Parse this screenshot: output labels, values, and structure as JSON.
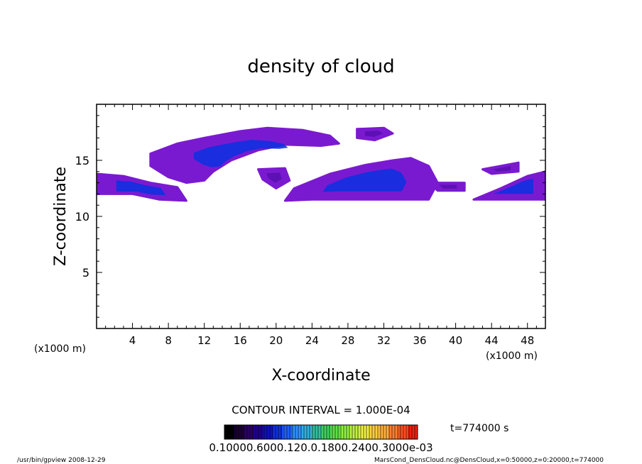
{
  "chart_data": {
    "type": "heatmap",
    "title": "density of cloud",
    "xlabel": "X-coordinate",
    "ylabel": "Z-coordinate",
    "x_unit_left": "(x1000 m)",
    "x_unit_right": "(x1000 m)",
    "xlim": [
      0,
      50
    ],
    "ylim": [
      0,
      20
    ],
    "x_ticks": [
      4,
      8,
      12,
      16,
      20,
      24,
      28,
      32,
      36,
      40,
      44,
      48
    ],
    "y_ticks": [
      5,
      10,
      15
    ],
    "x_tick_labels": [
      "4",
      "8",
      "12",
      "16",
      "20",
      "24",
      "28",
      "32",
      "36",
      "40",
      "44",
      "48"
    ],
    "y_tick_labels": [
      "5",
      "10",
      "15"
    ],
    "contour_interval": "CONTOUR INTERVAL = 1.000E-04",
    "time_label": "t=774000 s",
    "colorbar_labels_text": "0.10000.6000.120.0.1800.2400.3000e-03",
    "colorbar_colors": [
      "#000000",
      "#1a0033",
      "#2a0060",
      "#200090",
      "#1010c0",
      "#1030e0",
      "#2060ff",
      "#3090ff",
      "#30b0e0",
      "#30c0a0",
      "#40d060",
      "#60e040",
      "#90f040",
      "#c0f040",
      "#f0f040",
      "#ffd040",
      "#ffb040",
      "#ff8030",
      "#ff5020",
      "#f02010"
    ],
    "cloud_regions": [
      {
        "shape": "band",
        "points": [
          [
            0,
            13.8
          ],
          [
            3,
            13.6
          ],
          [
            6,
            13.0
          ],
          [
            9,
            12.6
          ],
          [
            10,
            11.4
          ],
          [
            7,
            11.5
          ],
          [
            4,
            12.0
          ],
          [
            0,
            12.0
          ]
        ],
        "core": "#1030e0",
        "edge": "#7a1ad0"
      },
      {
        "shape": "blob",
        "points": [
          [
            6,
            15.6
          ],
          [
            9,
            16.5
          ],
          [
            12,
            17.0
          ],
          [
            16,
            17.6
          ],
          [
            19,
            17.9
          ],
          [
            23,
            17.7
          ],
          [
            26,
            17.2
          ],
          [
            27,
            16.5
          ],
          [
            25,
            16.3
          ],
          [
            21,
            16.4
          ],
          [
            18,
            15.9
          ],
          [
            15,
            15.0
          ],
          [
            13,
            14.0
          ],
          [
            12,
            13.2
          ],
          [
            10,
            13.0
          ],
          [
            8,
            13.5
          ],
          [
            6,
            14.5
          ]
        ],
        "core": "#1030e0",
        "edge": "#7a1ad0"
      },
      {
        "shape": "blob",
        "points": [
          [
            29,
            17.8
          ],
          [
            32,
            17.9
          ],
          [
            33,
            17.4
          ],
          [
            31,
            16.8
          ],
          [
            29,
            17.0
          ]
        ],
        "core": "#5a10b0",
        "edge": "#7a1ad0"
      },
      {
        "shape": "blob",
        "points": [
          [
            18,
            14.2
          ],
          [
            21,
            14.3
          ],
          [
            21.5,
            13.2
          ],
          [
            20,
            12.5
          ],
          [
            18.5,
            13.3
          ]
        ],
        "core": "#5a10b0",
        "edge": "#7a1ad0"
      },
      {
        "shape": "band",
        "points": [
          [
            22,
            12.5
          ],
          [
            26,
            13.8
          ],
          [
            30,
            14.6
          ],
          [
            33,
            15.0
          ],
          [
            35,
            15.2
          ],
          [
            37,
            14.5
          ],
          [
            38,
            13.0
          ],
          [
            37,
            11.5
          ],
          [
            30,
            11.5
          ],
          [
            24,
            11.5
          ],
          [
            21,
            11.4
          ]
        ],
        "core": "#1030e0",
        "edge": "#7a1ad0"
      },
      {
        "shape": "blob",
        "points": [
          [
            37,
            13.0
          ],
          [
            41,
            13.0
          ],
          [
            41,
            12.3
          ],
          [
            38,
            12.3
          ]
        ],
        "core": "#5a10b0",
        "edge": "#7a1ad0"
      },
      {
        "shape": "blob",
        "points": [
          [
            43,
            14.2
          ],
          [
            47,
            14.8
          ],
          [
            47,
            14.0
          ],
          [
            44,
            13.8
          ]
        ],
        "core": "#5a10b0",
        "edge": "#7a1ad0"
      },
      {
        "shape": "band",
        "points": [
          [
            42,
            11.5
          ],
          [
            45,
            12.5
          ],
          [
            48,
            13.6
          ],
          [
            50,
            14.0
          ],
          [
            50,
            11.5
          ]
        ],
        "core": "#1030e0",
        "edge": "#7a1ad0"
      }
    ]
  },
  "footer": {
    "left": "/usr/bin/gpview   2008-12-29",
    "right": "MarsCond_DensCloud.nc@DensCloud,x=0:50000,z=0:20000,t=774000"
  }
}
